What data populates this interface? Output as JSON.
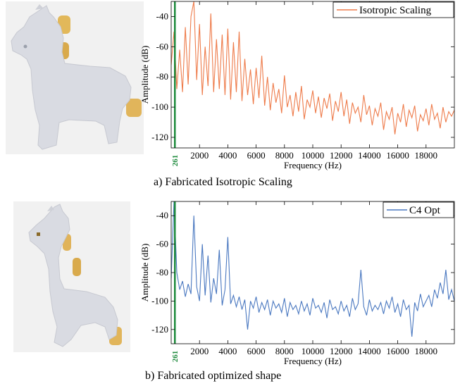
{
  "panels": [
    {
      "caption": "a) Fabricated Isotropic Scaling",
      "chart_data": {
        "type": "line",
        "title": "",
        "xlabel": "Frequency (Hz)",
        "ylabel": "Amplitude (dB)",
        "xlim": [
          0,
          20000
        ],
        "ylim": [
          -127,
          -30
        ],
        "xticks": [
          2000,
          4000,
          6000,
          8000,
          10000,
          12000,
          14000,
          16000,
          18000
        ],
        "xtick_labels": [
          "2000",
          "4000",
          "6000",
          "8000",
          "10000",
          "12000",
          "14000",
          "16000",
          "18000"
        ],
        "yticks": [
          -40,
          -60,
          -80,
          -100,
          -120
        ],
        "ytick_labels": [
          "-40",
          "-60",
          "-80",
          "-100",
          "-120"
        ],
        "marker": {
          "x": 261,
          "label": "261",
          "color": "#1d8a3c"
        },
        "legend": {
          "position": "top-right"
        },
        "grid": false,
        "series": [
          {
            "name": "Isotropic Scaling",
            "color": "#ee7b4a",
            "x": [
              0,
              200,
              400,
              600,
              800,
              1000,
              1200,
              1400,
              1600,
              1800,
              2000,
              2200,
              2400,
              2600,
              2800,
              3000,
              3200,
              3400,
              3600,
              3800,
              4000,
              4200,
              4400,
              4600,
              4800,
              5000,
              5200,
              5400,
              5600,
              5800,
              6000,
              6200,
              6400,
              6600,
              6800,
              7000,
              7200,
              7400,
              7600,
              7800,
              8000,
              8200,
              8400,
              8600,
              8800,
              9000,
              9200,
              9400,
              9600,
              9800,
              10000,
              10200,
              10400,
              10600,
              10800,
              11000,
              11200,
              11400,
              11600,
              11800,
              12000,
              12200,
              12400,
              12600,
              12800,
              13000,
              13200,
              13400,
              13600,
              13800,
              14000,
              14200,
              14400,
              14600,
              14800,
              15000,
              15200,
              15400,
              15600,
              15800,
              16000,
              16200,
              16400,
              16600,
              16800,
              17000,
              17200,
              17400,
              17600,
              17800,
              18000,
              18200,
              18400,
              18600,
              18800,
              19000,
              19200,
              19400,
              19600,
              19800,
              20000
            ],
            "y": [
              -72,
              -50,
              -88,
              -62,
              -90,
              -47,
              -85,
              -40,
              -30,
              -82,
              -45,
              -92,
              -60,
              -86,
              -38,
              -90,
              -55,
              -88,
              -52,
              -92,
              -48,
              -95,
              -57,
              -90,
              -50,
              -96,
              -68,
              -92,
              -75,
              -98,
              -74,
              -94,
              -66,
              -99,
              -80,
              -102,
              -84,
              -97,
              -88,
              -104,
              -79,
              -100,
              -92,
              -106,
              -90,
              -103,
              -86,
              -108,
              -95,
              -100,
              -89,
              -104,
              -93,
              -107,
              -94,
              -101,
              -91,
              -109,
              -96,
              -103,
              -90,
              -106,
              -95,
              -111,
              -97,
              -104,
              -100,
              -110,
              -92,
              -105,
              -99,
              -112,
              -101,
              -106,
              -97,
              -115,
              -103,
              -108,
              -100,
              -118,
              -104,
              -110,
              -98,
              -113,
              -102,
              -107,
              -99,
              -116,
              -105,
              -109,
              -101,
              -112,
              -98,
              -108,
              -104,
              -114,
              -100,
              -110,
              -103,
              -106,
              -102
            ]
          }
        ]
      }
    },
    {
      "caption": "b) Fabricated optimized shape",
      "chart_data": {
        "type": "line",
        "title": "",
        "xlabel": "Frequency (Hz)",
        "ylabel": "Amplitude (dB)",
        "xlim": [
          0,
          20000
        ],
        "ylim": [
          -130,
          -30
        ],
        "xticks": [
          2000,
          4000,
          6000,
          8000,
          10000,
          12000,
          14000,
          16000,
          18000
        ],
        "xtick_labels": [
          "2000",
          "4000",
          "6000",
          "8000",
          "10000",
          "12000",
          "14000",
          "16000",
          "18000"
        ],
        "yticks": [
          -40,
          -60,
          -80,
          -100,
          -120
        ],
        "ytick_labels": [
          "-40",
          "-60",
          "-80",
          "-100",
          "-120"
        ],
        "marker": {
          "x": 261,
          "label": "261",
          "color": "#1d8a3c"
        },
        "legend": {
          "position": "top-right"
        },
        "grid": false,
        "series": [
          {
            "name": "C4 Opt",
            "color": "#4a78c0",
            "x": [
              0,
              200,
              400,
              600,
              800,
              1000,
              1200,
              1400,
              1600,
              1800,
              2000,
              2200,
              2400,
              2600,
              2800,
              3000,
              3200,
              3400,
              3600,
              3800,
              4000,
              4200,
              4400,
              4600,
              4800,
              5000,
              5200,
              5400,
              5600,
              5800,
              6000,
              6200,
              6400,
              6600,
              6800,
              7000,
              7200,
              7400,
              7600,
              7800,
              8000,
              8200,
              8400,
              8600,
              8800,
              9000,
              9200,
              9400,
              9600,
              9800,
              10000,
              10200,
              10400,
              10600,
              10800,
              11000,
              11200,
              11400,
              11600,
              11800,
              12000,
              12200,
              12400,
              12600,
              12800,
              13000,
              13200,
              13400,
              13600,
              13800,
              14000,
              14200,
              14400,
              14600,
              14800,
              15000,
              15200,
              15400,
              15600,
              15800,
              16000,
              16200,
              16400,
              16600,
              16800,
              17000,
              17200,
              17400,
              17600,
              17800,
              18000,
              18200,
              18400,
              18600,
              18800,
              19000,
              19200,
              19400,
              19600,
              19800,
              20000
            ],
            "y": [
              -84,
              -30,
              -80,
              -92,
              -86,
              -97,
              -88,
              -95,
              -40,
              -90,
              -100,
              -60,
              -96,
              -68,
              -101,
              -84,
              -95,
              -64,
              -103,
              -92,
              -55,
              -102,
              -96,
              -104,
              -97,
              -106,
              -99,
              -120,
              -100,
              -105,
              -97,
              -108,
              -101,
              -106,
              -99,
              -110,
              -100,
              -105,
              -102,
              -108,
              -98,
              -111,
              -101,
              -106,
              -103,
              -109,
              -100,
              -107,
              -102,
              -110,
              -98,
              -105,
              -103,
              -108,
              -101,
              -112,
              -99,
              -106,
              -104,
              -109,
              -100,
              -107,
              -103,
              -111,
              -98,
              -106,
              -102,
              -78,
              -104,
              -110,
              -99,
              -107,
              -103,
              -106,
              -101,
              -109,
              -100,
              -105,
              -97,
              -108,
              -102,
              -111,
              -99,
              -106,
              -103,
              -125,
              -101,
              -107,
              -95,
              -104,
              -100,
              -96,
              -104,
              -92,
              -98,
              -87,
              -95,
              -78,
              -99,
              -92,
              -100
            ]
          }
        ]
      }
    }
  ]
}
